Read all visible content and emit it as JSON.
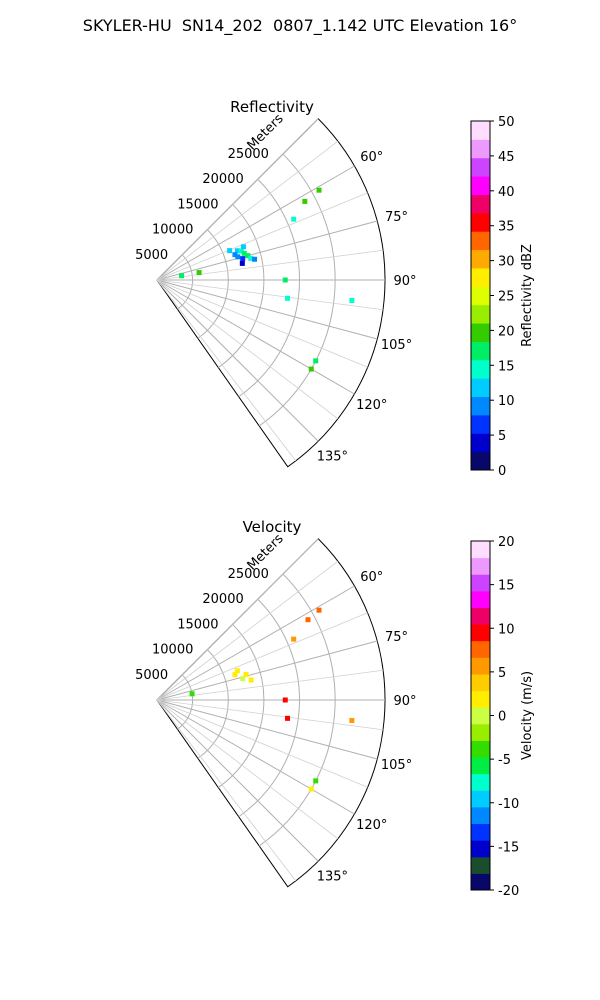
{
  "figure": {
    "title": "SKYLER-HU  SN14_202  0807_1.142 UTC Elevation 16°"
  },
  "chart_data": [
    {
      "type": "scatter",
      "subtype": "polar-sector radar PPI",
      "title": "Reflectivity",
      "radial_label": "Meters",
      "radial_ticks": [
        5000,
        10000,
        15000,
        20000,
        25000
      ],
      "radial_max": 32000,
      "azimuth_range_deg": [
        45,
        145
      ],
      "azimuth_ticks_deg": [
        60,
        75,
        90,
        105,
        120,
        135
      ],
      "azimuth_tick_labels": [
        "60°",
        "75°",
        "90°",
        "105°",
        "120°",
        "135°"
      ],
      "grid": true,
      "colorbar": {
        "label": "Reflectivity dBZ",
        "min": 0,
        "max": 50,
        "ticks": [
          0,
          5,
          10,
          15,
          20,
          25,
          30,
          35,
          40,
          45,
          50
        ],
        "colors": [
          "#08086b",
          "#0000cc",
          "#0033ff",
          "#0088ff",
          "#00ccff",
          "#00ffcc",
          "#00ee66",
          "#33cc00",
          "#99ee00",
          "#ddff00",
          "#ffee00",
          "#ffaa00",
          "#ff6600",
          "#ff0000",
          "#ee0066",
          "#ff00ff",
          "#cc44ff",
          "#ee99ff",
          "#ffddff"
        ]
      },
      "points": [
        {
          "az": 70,
          "range": 12000,
          "value": 12
        },
        {
          "az": 71,
          "range": 12500,
          "value": 14
        },
        {
          "az": 72,
          "range": 11500,
          "value": 8
        },
        {
          "az": 73,
          "range": 12800,
          "value": 16
        },
        {
          "az": 74,
          "range": 11800,
          "value": 10
        },
        {
          "az": 75,
          "range": 13200,
          "value": 18
        },
        {
          "az": 76,
          "range": 12400,
          "value": 6
        },
        {
          "az": 77,
          "range": 13500,
          "value": 15
        },
        {
          "az": 68,
          "range": 11000,
          "value": 13
        },
        {
          "az": 69,
          "range": 13000,
          "value": 11
        },
        {
          "az": 78,
          "range": 14000,
          "value": 9
        },
        {
          "az": 79,
          "range": 12200,
          "value": 4
        },
        {
          "az": 80,
          "range": 6000,
          "value": 20
        },
        {
          "az": 80,
          "range": 3500,
          "value": 17
        },
        {
          "az": 66,
          "range": 21000,
          "value": 15
        },
        {
          "az": 62,
          "range": 23500,
          "value": 19
        },
        {
          "az": 61,
          "range": 26000,
          "value": 21
        },
        {
          "az": 90,
          "range": 18000,
          "value": 17
        },
        {
          "az": 98,
          "range": 18500,
          "value": 15
        },
        {
          "az": 96,
          "range": 27500,
          "value": 14
        },
        {
          "az": 117,
          "range": 25000,
          "value": 17
        },
        {
          "az": 120,
          "range": 25000,
          "value": 19
        }
      ]
    },
    {
      "type": "scatter",
      "subtype": "polar-sector radar PPI",
      "title": "Velocity",
      "radial_label": "Meters",
      "radial_ticks": [
        5000,
        10000,
        15000,
        20000,
        25000
      ],
      "radial_max": 32000,
      "azimuth_range_deg": [
        45,
        145
      ],
      "azimuth_ticks_deg": [
        60,
        75,
        90,
        105,
        120,
        135
      ],
      "azimuth_tick_labels": [
        "60°",
        "75°",
        "90°",
        "105°",
        "120°",
        "135°"
      ],
      "grid": true,
      "colorbar": {
        "label": "Velocity (m/s)",
        "min": -20,
        "max": 20,
        "ticks": [
          -20,
          -15,
          -10,
          -5,
          0,
          5,
          10,
          15,
          20
        ],
        "colors": [
          "#08086b",
          "#1a4d2e",
          "#0000cc",
          "#0033ff",
          "#0088ff",
          "#00ccff",
          "#00ffcc",
          "#00ee44",
          "#33dd00",
          "#99ee00",
          "#ccff44",
          "#ffee00",
          "#ffcc00",
          "#ff9900",
          "#ff6600",
          "#ff0000",
          "#ee0066",
          "#ff00ff",
          "#cc44ff",
          "#ee99ff",
          "#ffddff"
        ]
      },
      "points": [
        {
          "az": 70,
          "range": 12000,
          "value": 1
        },
        {
          "az": 72,
          "range": 11500,
          "value": 2
        },
        {
          "az": 74,
          "range": 13000,
          "value": 1
        },
        {
          "az": 76,
          "range": 12400,
          "value": 0
        },
        {
          "az": 78,
          "range": 13500,
          "value": 2
        },
        {
          "az": 80,
          "range": 5000,
          "value": -4
        },
        {
          "az": 66,
          "range": 21000,
          "value": 6
        },
        {
          "az": 62,
          "range": 24000,
          "value": 7
        },
        {
          "az": 61,
          "range": 26000,
          "value": 8
        },
        {
          "az": 90,
          "range": 18000,
          "value": 10
        },
        {
          "az": 98,
          "range": 18500,
          "value": 10
        },
        {
          "az": 96,
          "range": 27500,
          "value": 6
        },
        {
          "az": 117,
          "range": 25000,
          "value": -3
        },
        {
          "az": 120,
          "range": 25000,
          "value": 2
        }
      ]
    }
  ]
}
